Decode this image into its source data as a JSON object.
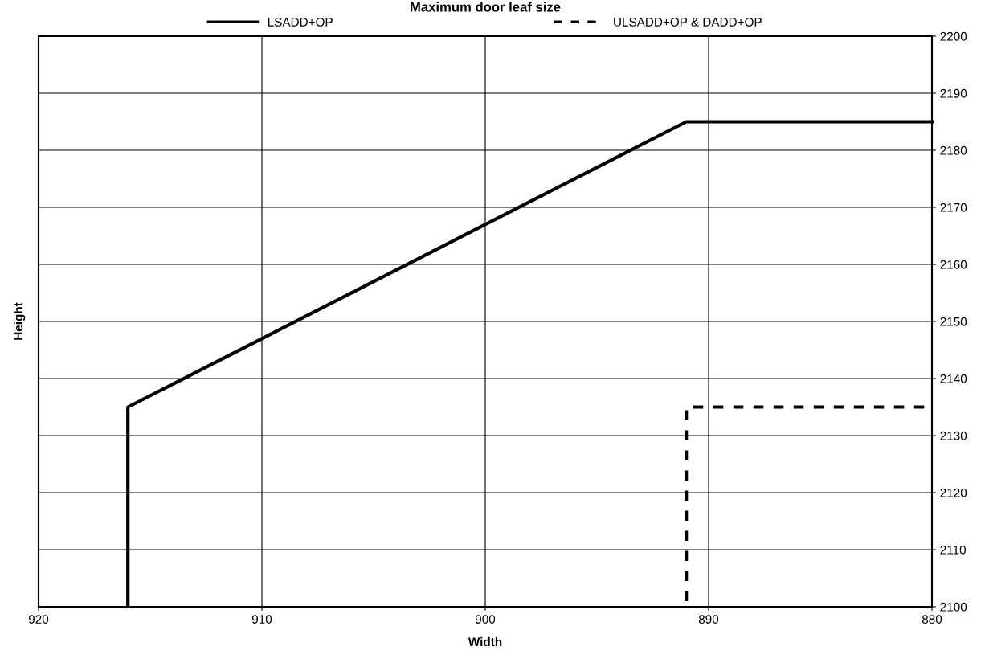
{
  "chart_data": {
    "type": "line",
    "title": "Maximum door leaf size",
    "xlabel": "Width",
    "ylabel": "Height",
    "series": [
      {
        "name": "LSADD+OP",
        "color": "#000000",
        "line_style": "solid",
        "x": [
          916,
          916,
          891,
          880
        ],
        "values": [
          2100,
          2135,
          2185,
          2185
        ]
      },
      {
        "name": "ULSADD+OP & DADD+OP",
        "color": "#000000",
        "line_style": "dashed",
        "x": [
          891,
          891,
          880
        ],
        "values": [
          2101,
          2135,
          2135
        ]
      }
    ],
    "xlim": [
      920,
      880
    ],
    "xticks": [
      920,
      910,
      900,
      890,
      880
    ],
    "ylim": [
      2100,
      2200
    ],
    "yticks": [
      2100,
      2110,
      2120,
      2130,
      2140,
      2150,
      2160,
      2170,
      2180,
      2190,
      2200
    ],
    "grid": true,
    "legend": "top",
    "marker": "none"
  }
}
